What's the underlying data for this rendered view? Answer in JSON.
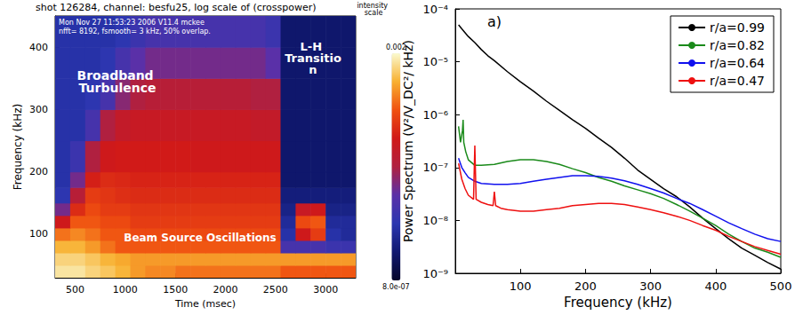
{
  "chart_data": [
    {
      "type": "heatmap",
      "title": "shot 126284, channel: besfu25, log scale of (crosspower)",
      "subtitle": "Mon Nov 27 11:53:23 2006 V11.4 mckee",
      "annotations": [
        "nfft= 8192, fsmooth= 3 kHz, 50% overlap.",
        "Broadband Turbulence",
        "L-H Transition",
        "Beam Source Oscillations"
      ],
      "x_label": "Time (msec)",
      "y_label": "Frequency (kHz)",
      "xlim": [
        300,
        3300
      ],
      "ylim": [
        30,
        450
      ],
      "xticks": [
        500,
        1000,
        1500,
        2000,
        2500,
        3000
      ],
      "yticks": [
        100,
        200,
        300,
        400
      ],
      "grid": false,
      "x_edges": [
        300,
        450,
        600,
        750,
        900,
        1050,
        1200,
        1350,
        1500,
        1650,
        1800,
        1950,
        2100,
        2250,
        2400,
        2550,
        2700,
        2850,
        3000,
        3150,
        3300
      ],
      "y_edges": [
        30,
        50,
        70,
        90,
        110,
        130,
        150,
        175,
        200,
        250,
        300,
        350,
        400,
        450
      ],
      "cells": [
        [
          0.0015,
          0.0015,
          0.0012,
          0.001,
          0.0008,
          0.0006,
          0.0005,
          0.0005,
          0.0004,
          0.0004,
          0.0004,
          0.0004,
          0.0004,
          0.0004,
          0.0004,
          0.0003,
          0.0003,
          0.0003,
          0.0003,
          0.0003
        ],
        [
          0.0012,
          0.0012,
          0.001,
          0.0008,
          0.0007,
          0.0006,
          0.0006,
          0.0006,
          0.0006,
          0.0006,
          0.0006,
          0.0006,
          0.0006,
          0.0006,
          0.0006,
          0.0006,
          0.0006,
          0.0006,
          0.0006,
          0.0006
        ],
        [
          0.0008,
          0.0008,
          0.0006,
          0.0004,
          0.0003,
          0.0003,
          0.0003,
          0.0003,
          0.0003,
          0.0003,
          0.0003,
          0.0003,
          0.0003,
          0.0003,
          0.0003,
          1e-05,
          1e-05,
          1e-05,
          8e-06,
          8e-06
        ],
        [
          0.0004,
          0.0005,
          0.0004,
          0.0003,
          0.0003,
          0.00025,
          0.00025,
          0.00025,
          0.00025,
          0.00025,
          0.00025,
          0.00025,
          0.00025,
          0.00025,
          0.00025,
          5e-06,
          0.0001,
          0.0002,
          5e-06,
          4e-06
        ],
        [
          0.0001,
          0.0003,
          0.0003,
          0.00025,
          0.00025,
          0.0002,
          0.0002,
          0.0002,
          0.0002,
          0.0002,
          0.0002,
          0.0002,
          0.0002,
          0.0002,
          0.0002,
          4e-06,
          0.00025,
          0.0003,
          4e-06,
          4e-06
        ],
        [
          2e-05,
          0.00015,
          0.00025,
          0.0002,
          0.0002,
          0.00018,
          0.00018,
          0.00018,
          0.00018,
          0.00018,
          0.00018,
          0.00018,
          0.00018,
          0.00018,
          0.00018,
          3e-06,
          8e-05,
          0.0001,
          3e-06,
          3e-06
        ],
        [
          6e-06,
          5e-05,
          0.0002,
          0.00018,
          0.00016,
          0.00015,
          0.00015,
          0.00015,
          0.00015,
          0.00015,
          0.00015,
          0.00015,
          0.00015,
          0.00015,
          0.00015,
          2.5e-06,
          2.5e-06,
          2.5e-06,
          2.5e-06,
          2.5e-06
        ],
        [
          5e-06,
          2e-05,
          0.00012,
          0.00015,
          0.00014,
          0.00013,
          0.00013,
          0.00013,
          0.00013,
          0.00013,
          0.00013,
          0.00013,
          0.00013,
          0.00013,
          0.00013,
          2e-06,
          2e-06,
          2e-06,
          2e-06,
          2e-06
        ],
        [
          5e-06,
          8e-06,
          4e-05,
          0.0001,
          0.00011,
          0.00011,
          0.00011,
          0.00011,
          0.00011,
          0.0001,
          0.0001,
          0.0001,
          0.0001,
          0.0001,
          0.0001,
          2e-06,
          2e-06,
          2e-06,
          2e-06,
          2e-06
        ],
        [
          5e-06,
          5e-06,
          1e-05,
          4e-05,
          7e-05,
          8e-05,
          8e-05,
          8e-05,
          8e-05,
          8e-05,
          8e-05,
          8e-05,
          8e-05,
          7e-05,
          7e-05,
          2e-06,
          2e-06,
          2e-06,
          2e-06,
          2e-06
        ],
        [
          5e-06,
          5e-06,
          6e-06,
          1e-05,
          2.5e-05,
          4e-05,
          5e-05,
          5e-05,
          5e-05,
          5e-05,
          5e-05,
          5e-05,
          5e-05,
          4e-05,
          4e-05,
          2e-06,
          2e-06,
          2e-06,
          2e-06,
          2e-06
        ],
        [
          5e-06,
          5e-06,
          5e-06,
          6e-06,
          1e-05,
          1.5e-05,
          2e-05,
          2e-05,
          2e-05,
          2e-05,
          2e-05,
          2e-05,
          2e-05,
          2e-05,
          1.5e-05,
          2e-06,
          2e-06,
          2e-06,
          2e-06,
          2e-06
        ],
        [
          5e-06,
          5e-06,
          5e-06,
          5e-06,
          6e-06,
          8e-06,
          1e-05,
          1e-05,
          1e-05,
          1e-05,
          1e-05,
          1e-05,
          1e-05,
          1e-05,
          8e-06,
          2e-06,
          2e-06,
          2e-06,
          2e-06,
          2e-06
        ]
      ],
      "colorbar": {
        "label": "intensity scale",
        "range": [
          8e-07,
          0.002
        ],
        "ticks": [
          {
            "value": 8e-07,
            "label": "8.0e-07"
          },
          0.002
        ],
        "log": true
      }
    },
    {
      "type": "line",
      "annotations": [
        "a)"
      ],
      "x_label": "Frequency (kHz)",
      "y_label": "Power Spectrum (V²/V_DC²/ kHz)",
      "xlim": [
        0,
        500
      ],
      "xticks": [
        100,
        200,
        300,
        400,
        500
      ],
      "ylim": [
        1e-09,
        0.0001
      ],
      "yticks": [
        {
          "value": 1e-09,
          "label": "10⁻⁹"
        },
        {
          "value": 1e-08,
          "label": "10⁻⁸"
        },
        {
          "value": 1e-07,
          "label": "10⁻⁷"
        },
        {
          "value": 1e-06,
          "label": "10⁻⁶"
        },
        {
          "value": 1e-05,
          "label": "10⁻⁵"
        },
        {
          "value": 0.0001,
          "label": "10⁻⁴"
        }
      ],
      "log": "y",
      "grid": false,
      "legend": "top-right",
      "series": [
        {
          "name": "r/a=0.99",
          "color": "#000000",
          "x": [
            5,
            10,
            20,
            30,
            40,
            50,
            60,
            80,
            100,
            120,
            140,
            160,
            180,
            200,
            220,
            240,
            260,
            280,
            300,
            320,
            340,
            360,
            380,
            400,
            420,
            440,
            460,
            480,
            500
          ],
          "values": [
            5e-05,
            4.2e-05,
            3e-05,
            2.3e-05,
            1.7e-05,
            1.3e-05,
            1.05e-05,
            6.5e-06,
            4.2e-06,
            2.8e-06,
            1.8e-06,
            1.2e-06,
            8e-07,
            5.5e-07,
            3.6e-07,
            2.4e-07,
            1.5e-07,
            9e-08,
            6e-08,
            4e-08,
            2.8e-08,
            1.8e-08,
            1.1e-08,
            7e-09,
            4.5e-09,
            3e-09,
            2.2e-09,
            1.6e-09,
            1.2e-09
          ]
        },
        {
          "name": "r/a=0.82",
          "color": "#1a8a1a",
          "x": [
            5,
            8,
            11,
            12,
            13,
            16,
            20,
            30,
            40,
            60,
            80,
            100,
            120,
            140,
            160,
            180,
            200,
            220,
            240,
            260,
            280,
            300,
            320,
            340,
            360,
            380,
            400,
            420,
            440,
            460,
            480,
            500
          ],
          "values": [
            6e-07,
            3e-07,
            5e-07,
            8e-07,
            3e-07,
            2e-07,
            1.4e-07,
            1.1e-07,
            1.1e-07,
            1.15e-07,
            1.3e-07,
            1.4e-07,
            1.4e-07,
            1.3e-07,
            1.15e-07,
            9.5e-08,
            8e-08,
            6.5e-08,
            5.5e-08,
            4.5e-08,
            3.8e-08,
            3.2e-08,
            2.6e-08,
            2e-08,
            1.5e-08,
            1.1e-08,
            8e-09,
            5.5e-09,
            4e-09,
            3e-09,
            2.5e-09,
            2e-09
          ]
        },
        {
          "name": "r/a=0.64",
          "color": "#1010ee",
          "x": [
            5,
            10,
            15,
            20,
            30,
            40,
            60,
            80,
            100,
            120,
            140,
            160,
            180,
            200,
            220,
            240,
            260,
            280,
            300,
            320,
            340,
            360,
            380,
            400,
            420,
            440,
            460,
            480,
            500
          ],
          "values": [
            1.5e-07,
            1e-07,
            8e-08,
            6.5e-08,
            5.5e-08,
            5e-08,
            4.8e-08,
            4.8e-08,
            5e-08,
            5.5e-08,
            6e-08,
            6.5e-08,
            7e-08,
            7e-08,
            6.8e-08,
            6.3e-08,
            5.6e-08,
            4.8e-08,
            4e-08,
            3.3e-08,
            2.6e-08,
            2.1e-08,
            1.6e-08,
            1.2e-08,
            9e-09,
            7e-09,
            5.5e-09,
            4.5e-09,
            4e-09
          ]
        },
        {
          "name": "r/a=0.47",
          "color": "#ee1010",
          "x": [
            5,
            10,
            15,
            20,
            28,
            30,
            32,
            40,
            50,
            58,
            60,
            62,
            70,
            80,
            100,
            120,
            140,
            160,
            180,
            200,
            220,
            240,
            260,
            280,
            300,
            320,
            340,
            360,
            380,
            400,
            420,
            440,
            460,
            480,
            500
          ],
          "values": [
            1.2e-07,
            6e-08,
            4e-08,
            3e-08,
            2.5e-08,
            2.6e-07,
            2.5e-08,
            2.2e-08,
            2e-08,
            1.9e-08,
            3.5e-08,
            1.9e-08,
            1.7e-08,
            1.6e-08,
            1.5e-08,
            1.5e-08,
            1.6e-08,
            1.7e-08,
            1.9e-08,
            2e-08,
            2.1e-08,
            2.1e-08,
            2e-08,
            1.8e-08,
            1.6e-08,
            1.4e-08,
            1.2e-08,
            1e-08,
            8e-09,
            6.5e-09,
            5e-09,
            4e-09,
            3.2e-09,
            2.7e-09,
            2.3e-09
          ]
        }
      ]
    }
  ]
}
